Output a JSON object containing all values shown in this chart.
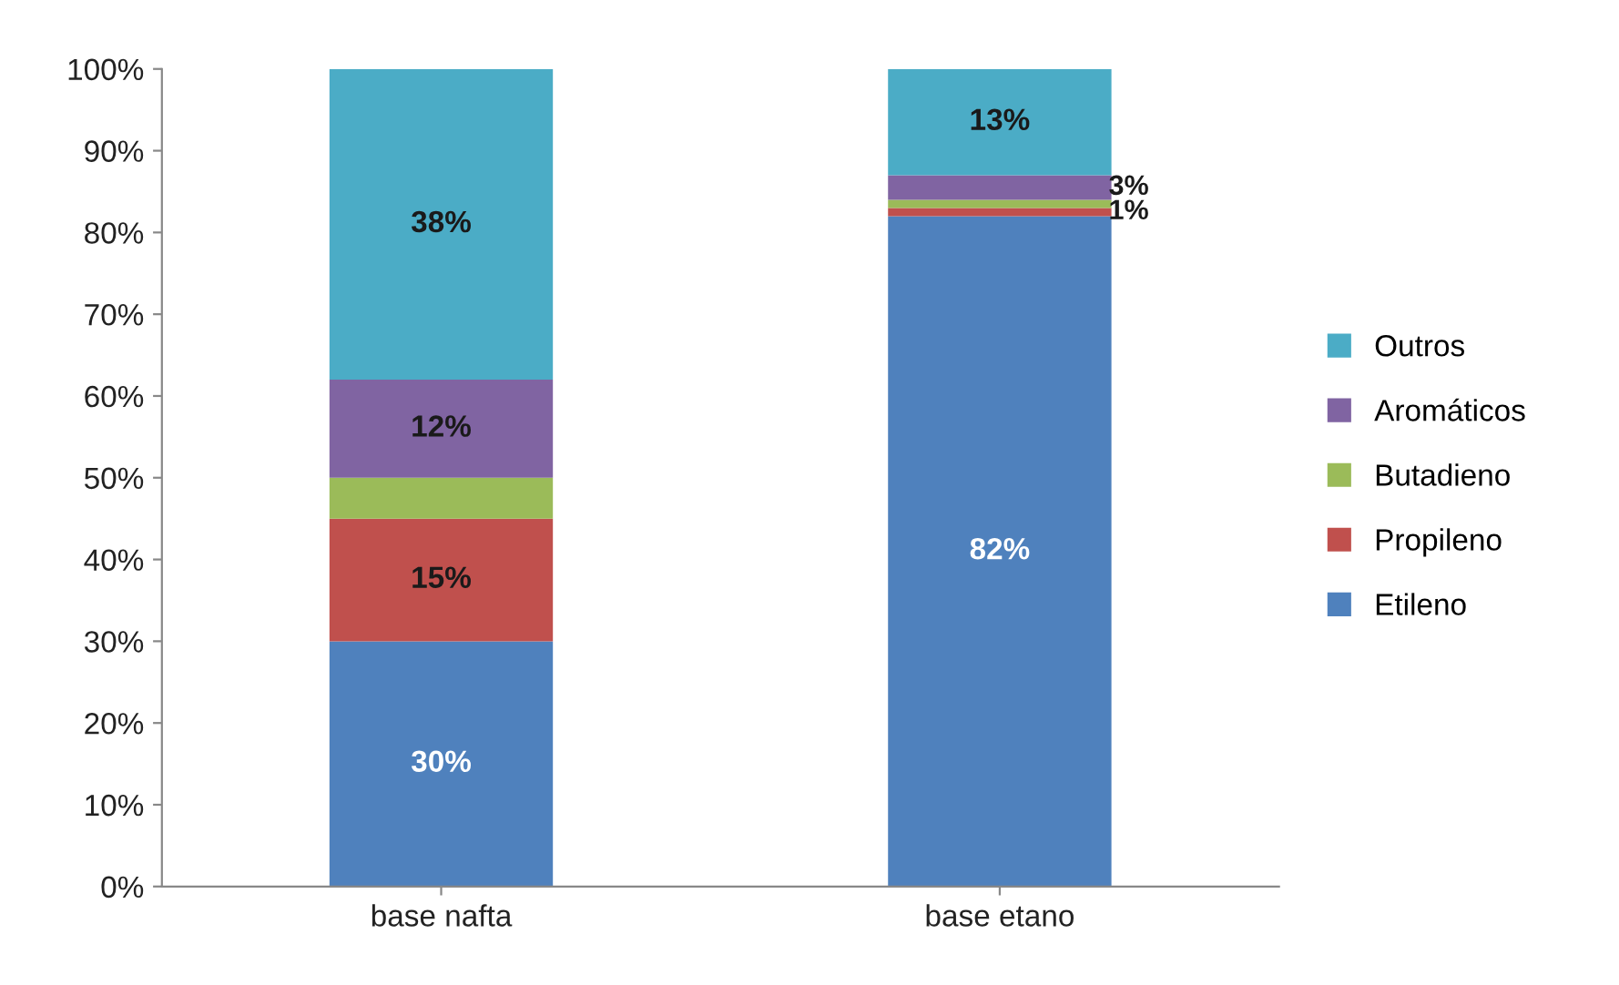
{
  "chart_data": {
    "type": "bar",
    "stacked": true,
    "categories": [
      "base nafta",
      "base etano"
    ],
    "series": [
      {
        "name": "Etileno",
        "color": "#4f81bd",
        "values": [
          30,
          82
        ],
        "value_labels": [
          "30%",
          "82%"
        ]
      },
      {
        "name": "Propileno",
        "color": "#c0504d",
        "values": [
          15,
          1
        ],
        "value_labels": [
          "15%",
          "1%"
        ]
      },
      {
        "name": "Butadieno",
        "color": "#9bbb59",
        "values": [
          5,
          1
        ],
        "value_labels": [
          null,
          null
        ]
      },
      {
        "name": "Aromáticos",
        "color": "#8064a2",
        "values": [
          12,
          3
        ],
        "value_labels": [
          "12%",
          "3%"
        ]
      },
      {
        "name": "Outros",
        "color": "#4bacc6",
        "values": [
          38,
          13
        ],
        "value_labels": [
          "38%",
          "13%"
        ]
      }
    ],
    "ylim": [
      0,
      100
    ],
    "yticks": [
      {
        "value": 0,
        "label": "0%"
      },
      {
        "value": 10,
        "label": "10%"
      },
      {
        "value": 20,
        "label": "20%"
      },
      {
        "value": 30,
        "label": "30%"
      },
      {
        "value": 40,
        "label": "40%"
      },
      {
        "value": 50,
        "label": "50%"
      },
      {
        "value": 60,
        "label": "60%"
      },
      {
        "value": 70,
        "label": "70%"
      },
      {
        "value": 80,
        "label": "80%"
      },
      {
        "value": 90,
        "label": "90%"
      },
      {
        "value": 100,
        "label": "100%"
      }
    ],
    "grid": false,
    "legend": "right"
  }
}
